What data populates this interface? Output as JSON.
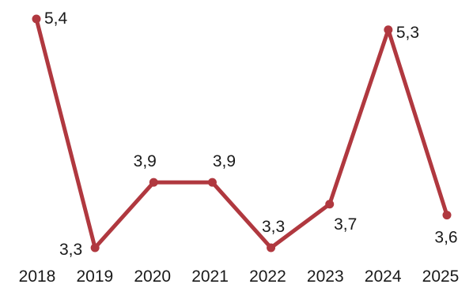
{
  "chart_data": {
    "type": "line",
    "x": [
      "2018",
      "2019",
      "2020",
      "2021",
      "2022",
      "2023",
      "2024",
      "2025"
    ],
    "series": [
      {
        "values": [
          5.4,
          3.3,
          3.9,
          3.9,
          3.3,
          3.7,
          5.3,
          3.6
        ],
        "labels": [
          "5,4",
          "3,3",
          "3,9",
          "3,9",
          "3,3",
          "3,7",
          "5,3",
          "3,6"
        ]
      }
    ],
    "line_color": "#b0383f",
    "ylim": [
      3.1,
      5.6
    ],
    "grid": false,
    "legend": "none",
    "title": "",
    "xlabel": "",
    "ylabel": ""
  }
}
